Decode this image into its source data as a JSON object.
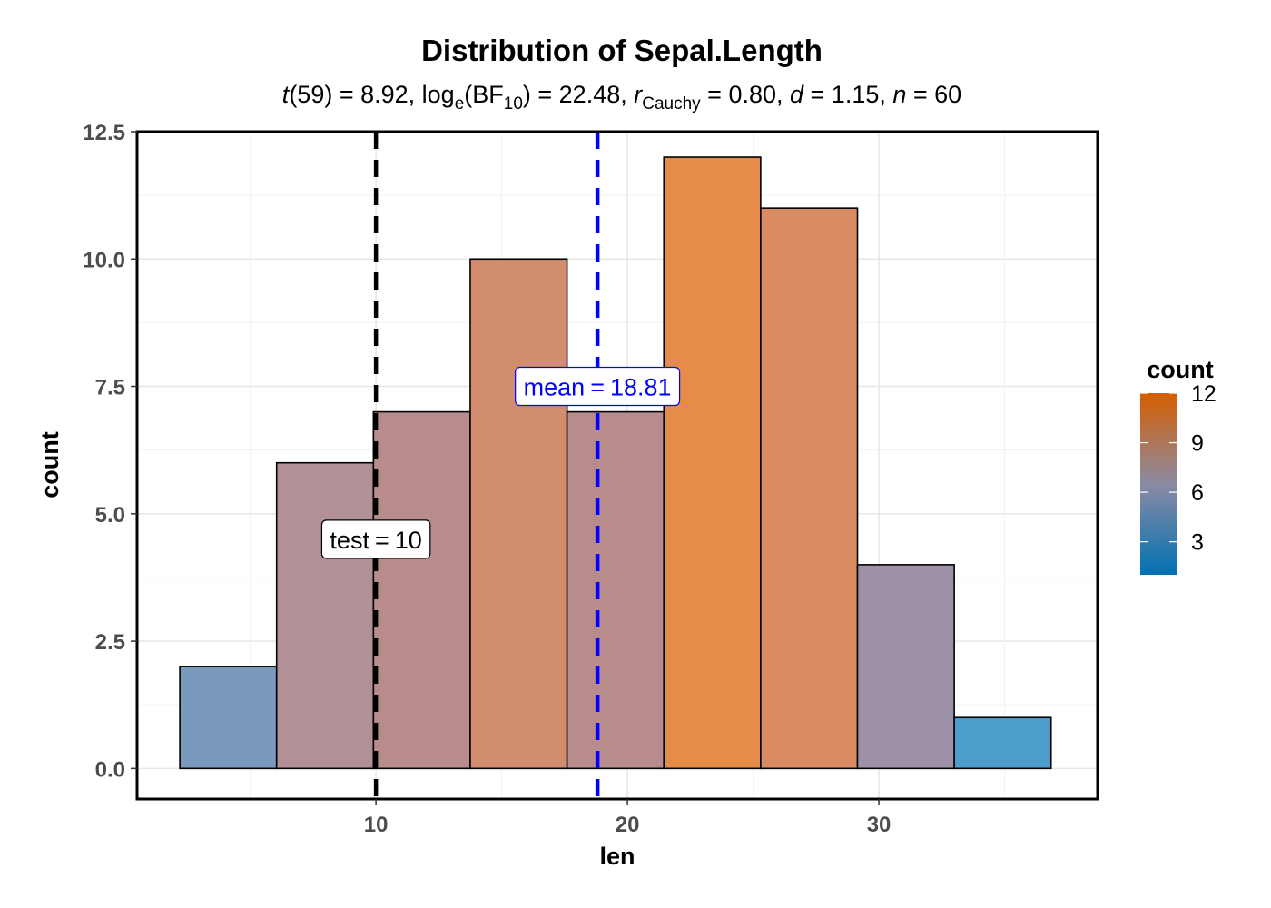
{
  "chart_data": {
    "type": "bar",
    "title": "Distribution of Sepal.Length",
    "subtitle": {
      "t_sym": "t",
      "t_df": "(59) = 8.92, log",
      "log_sub": "e",
      "bf_open": "(BF",
      "bf_sub": "10",
      "bf_close": ") = 22.48, ",
      "r_sym": "r",
      "r_sub": "Cauchy",
      "r_val": " = 0.80, ",
      "d_sym": "d",
      "d_val": " = 1.15, ",
      "n_sym": "n",
      "n_val": " = 60"
    },
    "xlabel": "len",
    "ylabel": "count",
    "xlim": [
      0.5,
      38.7
    ],
    "ylim": [
      -0.6,
      12.5
    ],
    "x_ticks": [
      {
        "value": 10,
        "label": "10"
      },
      {
        "value": 20,
        "label": "20"
      },
      {
        "value": 30,
        "label": "30"
      }
    ],
    "y_ticks": [
      {
        "value": 0,
        "label": "0.0"
      },
      {
        "value": 2.5,
        "label": "2.5"
      },
      {
        "value": 5,
        "label": "5.0"
      },
      {
        "value": 7.5,
        "label": "7.5"
      },
      {
        "value": 10,
        "label": "10.0"
      },
      {
        "value": 12.5,
        "label": "12.5"
      }
    ],
    "bins": [
      {
        "x0": 2.2,
        "x1": 6.05,
        "count": 2,
        "fill": "#7b99bd"
      },
      {
        "x0": 6.05,
        "x1": 9.9,
        "count": 6,
        "fill": "#b19196"
      },
      {
        "x0": 9.9,
        "x1": 13.75,
        "count": 7,
        "fill": "#b88c8c"
      },
      {
        "x0": 13.75,
        "x1": 17.6,
        "count": 10,
        "fill": "#d28c6e"
      },
      {
        "x0": 17.6,
        "x1": 21.45,
        "count": 7,
        "fill": "#b88c8c"
      },
      {
        "x0": 21.45,
        "x1": 25.3,
        "count": 12,
        "fill": "#e48c48"
      },
      {
        "x0": 25.3,
        "x1": 29.15,
        "count": 11,
        "fill": "#d98c62"
      },
      {
        "x0": 29.15,
        "x1": 33.0,
        "count": 4,
        "fill": "#9c91a6"
      },
      {
        "x0": 33.0,
        "x1": 36.85,
        "count": 1,
        "fill": "#4c9dcc"
      }
    ],
    "reference_lines": [
      {
        "name": "test",
        "value": 10,
        "color": "#000000",
        "label": "test",
        "eq": "=",
        "label_value": "10",
        "label_y": 4.5
      },
      {
        "name": "mean",
        "value": 18.81,
        "color": "#0000ff",
        "label": "mean",
        "eq": "=",
        "label_value": "18.81",
        "label_y": 7.5
      }
    ],
    "legend": {
      "title": "count",
      "range": [
        1,
        12
      ],
      "ticks": [
        {
          "value": 3,
          "label": "3"
        },
        {
          "value": 6,
          "label": "6"
        },
        {
          "value": 9,
          "label": "9"
        },
        {
          "value": 12,
          "label": "12"
        }
      ],
      "colors": [
        "#0072b2",
        "#8b8aa3",
        "#d55e00"
      ],
      "position": "right"
    },
    "grid": true
  }
}
